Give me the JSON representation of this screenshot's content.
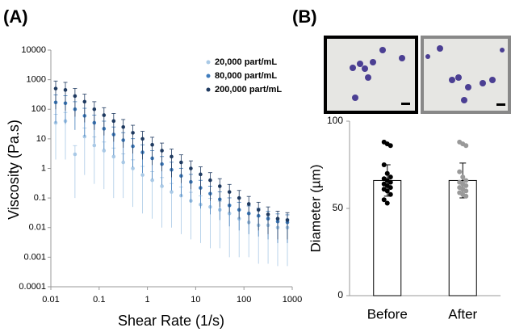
{
  "chart_data": [
    {
      "type": "scatter",
      "panel_label": "(A)",
      "x_label": "Shear Rate (1/s)",
      "y_label": "Viscosity (Pa.s)",
      "log_x": true,
      "log_y": true,
      "legend": "upper right",
      "xlim": [
        0.01,
        1000
      ],
      "xticks": [
        0.01,
        0.1,
        1,
        10,
        100,
        1000
      ],
      "ylim": [
        0.0001,
        10000
      ],
      "yticks": [
        0.0001,
        0.001,
        0.01,
        0.1,
        1,
        10,
        100,
        1000,
        10000
      ],
      "x": [
        0.0126,
        0.02,
        0.0316,
        0.05,
        0.0794,
        0.126,
        0.2,
        0.316,
        0.5,
        0.794,
        1.26,
        2,
        3.16,
        5,
        7.94,
        12.6,
        20,
        31.6,
        50,
        79.4,
        126,
        200,
        316,
        500,
        794
      ],
      "series": [
        {
          "name": "20,000 part/mL",
          "color": "#a9c9e6",
          "values": [
            35,
            40,
            3,
            12,
            6,
            4,
            2.5,
            1.6,
            1,
            0.6,
            0.4,
            0.25,
            0.16,
            0.12,
            0.08,
            0.06,
            0.05,
            0.04,
            0.03,
            0.02,
            0.015,
            0.012,
            0.012,
            0.01,
            0.01
          ],
          "errors": [
            33,
            38,
            2.9,
            11.4,
            5.7,
            3.8,
            2.4,
            1.5,
            0.95,
            0.57,
            0.38,
            0.24,
            0.15,
            0.114,
            0.076,
            0.057,
            0.048,
            0.038,
            0.029,
            0.019,
            0.014,
            0.0114,
            0.0114,
            0.0095,
            0.0095
          ]
        },
        {
          "name": "80,000 part/mL",
          "color": "#3f7cbc",
          "values": [
            170,
            160,
            100,
            60,
            35,
            22,
            14,
            9,
            5.6,
            3.5,
            2.2,
            1.4,
            0.9,
            0.56,
            0.35,
            0.22,
            0.14,
            0.09,
            0.056,
            0.04,
            0.03,
            0.025,
            0.02,
            0.016,
            0.015
          ],
          "errors": [
            136,
            128,
            80,
            48,
            28,
            17.6,
            11.2,
            7.2,
            4.5,
            2.8,
            1.76,
            1.12,
            0.72,
            0.45,
            0.28,
            0.176,
            0.112,
            0.072,
            0.045,
            0.032,
            0.024,
            0.02,
            0.016,
            0.013,
            0.012
          ]
        },
        {
          "name": "200,000 part/mL",
          "color": "#1f3a60",
          "values": [
            500,
            450,
            280,
            180,
            100,
            63,
            40,
            25,
            16,
            10,
            6.3,
            4,
            2.5,
            1.6,
            1,
            0.63,
            0.4,
            0.25,
            0.16,
            0.1,
            0.063,
            0.04,
            0.028,
            0.02,
            0.018
          ],
          "errors": [
            400,
            360,
            224,
            144,
            80,
            50,
            32,
            20,
            12.8,
            8,
            5,
            3.2,
            2,
            1.28,
            0.8,
            0.5,
            0.32,
            0.2,
            0.128,
            0.08,
            0.05,
            0.032,
            0.022,
            0.016,
            0.014
          ]
        }
      ]
    },
    {
      "type": "bar",
      "panel_label": "(B)",
      "y_label": "Diameter (µm)",
      "categories": [
        "Before",
        "After"
      ],
      "values": [
        66,
        66
      ],
      "errors": [
        9,
        10
      ],
      "color": "#ffffff",
      "ylim": [
        0,
        100
      ],
      "yticks": [
        0,
        50,
        100
      ],
      "points": [
        [
          88,
          87,
          86,
          75,
          70,
          68,
          67,
          66,
          65,
          64,
          63,
          62,
          61,
          60,
          58,
          55,
          53
        ],
        [
          88,
          87,
          86,
          71,
          68,
          66,
          65,
          64,
          63,
          62,
          61,
          60,
          59,
          58,
          57
        ]
      ],
      "point_colors": [
        "#000000",
        "#999999"
      ]
    }
  ]
}
